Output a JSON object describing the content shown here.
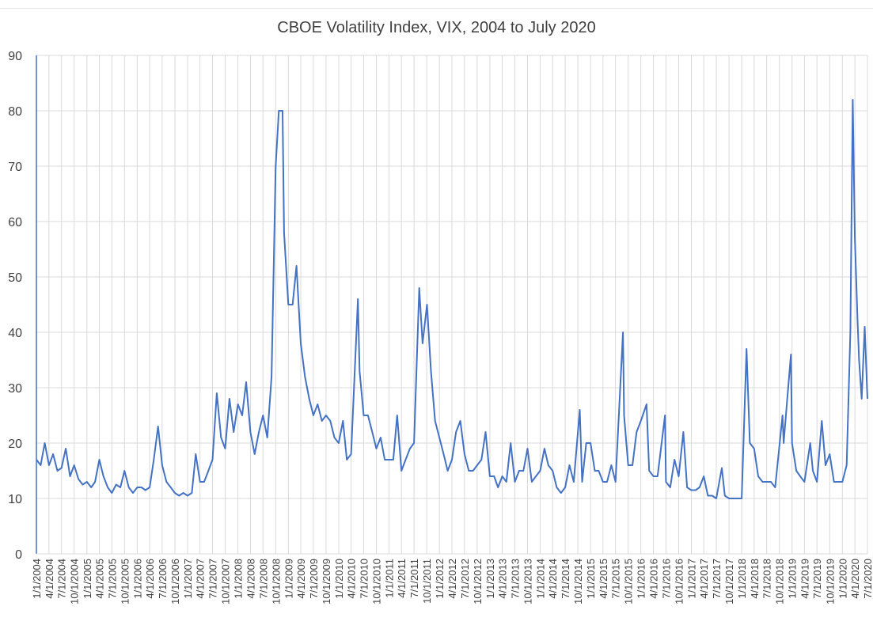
{
  "chart_data": {
    "type": "line",
    "title": "CBOE Volatility Index, VIX, 2004 to July 2020",
    "xlabel": "",
    "ylabel": "",
    "ylim": [
      0,
      90
    ],
    "yticks": [
      0,
      10,
      20,
      30,
      40,
      50,
      60,
      70,
      80,
      90
    ],
    "grid": true,
    "legend": "none",
    "line_color": "#4472C4",
    "x_tick_labels": [
      "1/1/2004",
      "4/1/2004",
      "7/1/2004",
      "10/1/2004",
      "1/1/2005",
      "4/1/2005",
      "7/1/2005",
      "10/1/2005",
      "1/1/2006",
      "4/1/2006",
      "7/1/2006",
      "10/1/2006",
      "1/1/2007",
      "4/1/2007",
      "7/1/2007",
      "10/1/2007",
      "1/1/2008",
      "4/1/2008",
      "7/1/2008",
      "10/1/2008",
      "1/1/2009",
      "4/1/2009",
      "7/1/2009",
      "10/1/2009",
      "1/1/2010",
      "4/1/2010",
      "7/1/2010",
      "10/1/2010",
      "1/1/2011",
      "4/1/2011",
      "7/1/2011",
      "10/1/2011",
      "1/1/2012",
      "4/1/2012",
      "7/1/2012",
      "10/1/2012",
      "1/1/2013",
      "4/1/2013",
      "7/1/2013",
      "10/1/2013",
      "1/1/2014",
      "4/1/2014",
      "7/1/2014",
      "10/1/2014",
      "1/1/2015",
      "4/1/2015",
      "7/1/2015",
      "10/1/2015",
      "1/1/2016",
      "4/1/2016",
      "7/1/2016",
      "10/1/2016",
      "1/1/2017",
      "4/1/2017",
      "7/1/2017",
      "10/1/2017",
      "1/1/2018",
      "4/1/2018",
      "7/1/2018",
      "10/1/2018",
      "1/1/2019",
      "4/1/2019",
      "7/1/2019",
      "10/1/2019",
      "1/1/2020",
      "4/1/2020",
      "7/1/2020"
    ],
    "series": [
      {
        "name": "VIX",
        "points": [
          [
            "1/1/2004",
            17
          ],
          [
            "2/1/2004",
            16
          ],
          [
            "3/1/2004",
            20
          ],
          [
            "4/1/2004",
            16
          ],
          [
            "5/1/2004",
            18
          ],
          [
            "6/1/2004",
            15
          ],
          [
            "7/1/2004",
            15.5
          ],
          [
            "8/1/2004",
            19
          ],
          [
            "9/1/2004",
            14
          ],
          [
            "10/1/2004",
            16
          ],
          [
            "11/1/2004",
            13.5
          ],
          [
            "12/1/2004",
            12.5
          ],
          [
            "1/1/2005",
            13
          ],
          [
            "2/1/2005",
            12
          ],
          [
            "3/1/2005",
            13
          ],
          [
            "4/1/2005",
            17
          ],
          [
            "5/1/2005",
            14
          ],
          [
            "6/1/2005",
            12
          ],
          [
            "7/1/2005",
            11
          ],
          [
            "8/1/2005",
            12.5
          ],
          [
            "9/1/2005",
            12
          ],
          [
            "10/1/2005",
            15
          ],
          [
            "11/1/2005",
            12
          ],
          [
            "12/1/2005",
            11
          ],
          [
            "1/1/2006",
            12
          ],
          [
            "2/1/2006",
            12
          ],
          [
            "3/1/2006",
            11.5
          ],
          [
            "4/1/2006",
            12
          ],
          [
            "5/1/2006",
            17
          ],
          [
            "6/1/2006",
            23
          ],
          [
            "7/1/2006",
            16
          ],
          [
            "8/1/2006",
            13
          ],
          [
            "9/1/2006",
            12
          ],
          [
            "10/1/2006",
            11
          ],
          [
            "11/1/2006",
            10.5
          ],
          [
            "12/1/2006",
            11
          ],
          [
            "1/1/2007",
            10.5
          ],
          [
            "2/1/2007",
            11
          ],
          [
            "3/1/2007",
            18
          ],
          [
            "4/1/2007",
            13
          ],
          [
            "5/1/2007",
            13
          ],
          [
            "6/1/2007",
            15
          ],
          [
            "7/1/2007",
            17
          ],
          [
            "8/1/2007",
            29
          ],
          [
            "9/1/2007",
            21
          ],
          [
            "10/1/2007",
            19
          ],
          [
            "11/1/2007",
            28
          ],
          [
            "12/1/2007",
            22
          ],
          [
            "1/1/2008",
            27
          ],
          [
            "2/1/2008",
            25
          ],
          [
            "3/1/2008",
            31
          ],
          [
            "4/1/2008",
            22
          ],
          [
            "5/1/2008",
            18
          ],
          [
            "6/1/2008",
            22
          ],
          [
            "7/1/2008",
            25
          ],
          [
            "8/1/2008",
            21
          ],
          [
            "9/1/2008",
            32
          ],
          [
            "10/1/2008",
            70
          ],
          [
            "10/24/2008",
            80
          ],
          [
            "11/20/2008",
            80
          ],
          [
            "12/1/2008",
            58
          ],
          [
            "1/1/2009",
            45
          ],
          [
            "2/1/2009",
            45
          ],
          [
            "3/1/2009",
            52
          ],
          [
            "4/1/2009",
            38
          ],
          [
            "5/1/2009",
            32
          ],
          [
            "6/1/2009",
            28
          ],
          [
            "7/1/2009",
            25
          ],
          [
            "8/1/2009",
            27
          ],
          [
            "9/1/2009",
            24
          ],
          [
            "10/1/2009",
            25
          ],
          [
            "11/1/2009",
            24
          ],
          [
            "12/1/2009",
            21
          ],
          [
            "1/1/2010",
            20
          ],
          [
            "2/1/2010",
            24
          ],
          [
            "3/1/2010",
            17
          ],
          [
            "4/1/2010",
            18
          ],
          [
            "5/20/2010",
            46
          ],
          [
            "6/1/2010",
            33
          ],
          [
            "7/1/2010",
            25
          ],
          [
            "8/1/2010",
            25
          ],
          [
            "9/1/2010",
            22
          ],
          [
            "10/1/2010",
            19
          ],
          [
            "11/1/2010",
            21
          ],
          [
            "12/1/2010",
            17
          ],
          [
            "1/1/2011",
            17
          ],
          [
            "2/1/2011",
            17
          ],
          [
            "3/1/2011",
            25
          ],
          [
            "4/1/2011",
            15
          ],
          [
            "5/1/2011",
            17
          ],
          [
            "6/1/2011",
            19
          ],
          [
            "7/1/2011",
            20
          ],
          [
            "8/8/2011",
            48
          ],
          [
            "9/1/2011",
            38
          ],
          [
            "10/3/2011",
            45
          ],
          [
            "11/1/2011",
            33
          ],
          [
            "12/1/2011",
            24
          ],
          [
            "1/1/2012",
            21
          ],
          [
            "2/1/2012",
            18
          ],
          [
            "3/1/2012",
            15
          ],
          [
            "4/1/2012",
            17
          ],
          [
            "5/1/2012",
            22
          ],
          [
            "6/1/2012",
            24
          ],
          [
            "7/1/2012",
            18
          ],
          [
            "8/1/2012",
            15
          ],
          [
            "9/1/2012",
            15
          ],
          [
            "10/1/2012",
            16
          ],
          [
            "11/1/2012",
            17
          ],
          [
            "12/1/2012",
            22
          ],
          [
            "1/1/2013",
            14
          ],
          [
            "2/1/2013",
            14
          ],
          [
            "3/1/2013",
            12
          ],
          [
            "4/1/2013",
            14
          ],
          [
            "5/1/2013",
            13
          ],
          [
            "6/1/2013",
            20
          ],
          [
            "7/1/2013",
            13
          ],
          [
            "8/1/2013",
            15
          ],
          [
            "9/1/2013",
            15
          ],
          [
            "10/1/2013",
            19
          ],
          [
            "11/1/2013",
            13
          ],
          [
            "12/1/2013",
            14
          ],
          [
            "1/1/2014",
            15
          ],
          [
            "2/1/2014",
            19
          ],
          [
            "3/1/2014",
            16
          ],
          [
            "4/1/2014",
            15
          ],
          [
            "5/1/2014",
            12
          ],
          [
            "6/1/2014",
            11
          ],
          [
            "7/1/2014",
            12
          ],
          [
            "8/1/2014",
            16
          ],
          [
            "9/1/2014",
            13
          ],
          [
            "10/15/2014",
            26
          ],
          [
            "11/1/2014",
            13
          ],
          [
            "12/1/2014",
            20
          ],
          [
            "1/1/2015",
            20
          ],
          [
            "2/1/2015",
            15
          ],
          [
            "3/1/2015",
            15
          ],
          [
            "4/1/2015",
            13
          ],
          [
            "5/1/2015",
            13
          ],
          [
            "6/1/2015",
            16
          ],
          [
            "7/1/2015",
            13
          ],
          [
            "8/24/2015",
            40
          ],
          [
            "9/1/2015",
            25
          ],
          [
            "10/1/2015",
            16
          ],
          [
            "11/1/2015",
            16
          ],
          [
            "12/1/2015",
            22
          ],
          [
            "1/1/2016",
            24
          ],
          [
            "2/11/2016",
            27
          ],
          [
            "3/1/2016",
            15
          ],
          [
            "4/1/2016",
            14
          ],
          [
            "5/1/2016",
            14
          ],
          [
            "6/24/2016",
            25
          ],
          [
            "7/1/2016",
            13
          ],
          [
            "8/1/2016",
            12
          ],
          [
            "9/1/2016",
            17
          ],
          [
            "10/1/2016",
            14
          ],
          [
            "11/4/2016",
            22
          ],
          [
            "12/1/2016",
            12
          ],
          [
            "1/1/2017",
            11.5
          ],
          [
            "2/1/2017",
            11.5
          ],
          [
            "3/1/2017",
            12
          ],
          [
            "4/1/2017",
            14
          ],
          [
            "5/1/2017",
            10.5
          ],
          [
            "6/1/2017",
            10.5
          ],
          [
            "7/1/2017",
            10
          ],
          [
            "8/10/2017",
            15.5
          ],
          [
            "9/1/2017",
            10.5
          ],
          [
            "10/1/2017",
            10
          ],
          [
            "11/1/2017",
            10
          ],
          [
            "12/1/2017",
            10
          ],
          [
            "1/1/2018",
            10
          ],
          [
            "2/5/2018",
            37
          ],
          [
            "3/1/2018",
            20
          ],
          [
            "4/1/2018",
            19
          ],
          [
            "5/1/2018",
            14
          ],
          [
            "6/1/2018",
            13
          ],
          [
            "7/1/2018",
            13
          ],
          [
            "8/1/2018",
            13
          ],
          [
            "9/1/2018",
            12
          ],
          [
            "10/24/2018",
            25
          ],
          [
            "11/1/2018",
            20
          ],
          [
            "12/24/2018",
            36
          ],
          [
            "1/1/2019",
            20
          ],
          [
            "2/1/2019",
            15
          ],
          [
            "3/1/2019",
            14
          ],
          [
            "4/1/2019",
            13
          ],
          [
            "5/13/2019",
            20
          ],
          [
            "6/1/2019",
            15
          ],
          [
            "7/1/2019",
            13
          ],
          [
            "8/5/2019",
            24
          ],
          [
            "9/1/2019",
            16
          ],
          [
            "10/1/2019",
            18
          ],
          [
            "11/1/2019",
            13
          ],
          [
            "12/1/2019",
            13
          ],
          [
            "1/1/2020",
            13
          ],
          [
            "2/1/2020",
            16
          ],
          [
            "2/28/2020",
            40
          ],
          [
            "3/16/2020",
            82
          ],
          [
            "4/1/2020",
            57
          ],
          [
            "4/20/2020",
            42
          ],
          [
            "5/1/2020",
            35
          ],
          [
            "5/20/2020",
            28
          ],
          [
            "6/11/2020",
            41
          ],
          [
            "6/20/2020",
            35
          ],
          [
            "7/1/2020",
            28
          ]
        ]
      }
    ]
  }
}
